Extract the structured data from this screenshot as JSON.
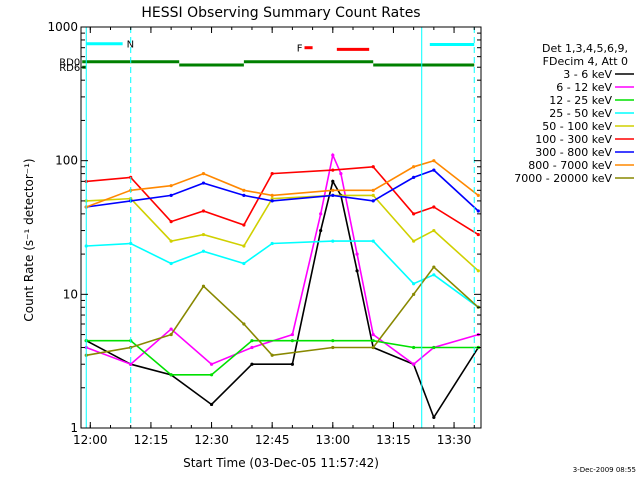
{
  "chart_data": {
    "type": "line",
    "title": "HESSI Observing Summary Count Rates",
    "xlabel": "Start Time (03-Dec-05 11:57:42)",
    "ylabel": "Count Rate (s⁻¹ detector⁻¹)",
    "y_scale": "log",
    "ylim": [
      1,
      1000
    ],
    "xlim": [
      "11:57:42",
      "13:36:40"
    ],
    "x_ticks": [
      "12:00",
      "12:15",
      "12:30",
      "12:45",
      "13:00",
      "13:15",
      "13:30"
    ],
    "y_ticks": [
      "1",
      "10",
      "100",
      "1000"
    ],
    "grid": false,
    "legend_header": [
      "Det 1,3,4,5,6,9,",
      "FDecim 4, Att 0"
    ],
    "legend_position": "right",
    "series": [
      {
        "name": "3 - 6 keV",
        "color": "#000000",
        "x": [
          "11:59",
          "12:10",
          "12:20",
          "12:30",
          "12:40",
          "12:50",
          "12:57",
          "13:00",
          "13:02",
          "13:06",
          "13:10",
          "13:20",
          "13:25",
          "13:36"
        ],
        "values": [
          4.5,
          3.0,
          2.5,
          1.5,
          3.0,
          3.0,
          30,
          70,
          55,
          15,
          4,
          3,
          1.2,
          4
        ]
      },
      {
        "name": "6 - 12 keV",
        "color": "#ff00ff",
        "x": [
          "11:59",
          "12:10",
          "12:20",
          "12:30",
          "12:40",
          "12:50",
          "12:57",
          "13:00",
          "13:02",
          "13:06",
          "13:10",
          "13:20",
          "13:25",
          "13:36"
        ],
        "values": [
          4.0,
          3.0,
          5.5,
          3.0,
          4.0,
          5.0,
          40,
          110,
          80,
          20,
          5,
          3,
          4,
          5
        ]
      },
      {
        "name": "12 - 25 keV",
        "color": "#00e000",
        "x": [
          "11:59",
          "12:10",
          "12:20",
          "12:30",
          "12:40",
          "12:50",
          "13:00",
          "13:10",
          "13:20",
          "13:25",
          "13:36"
        ],
        "values": [
          4.5,
          4.5,
          2.5,
          2.5,
          4.5,
          4.5,
          4.5,
          4.5,
          4.0,
          4.0,
          4.0
        ]
      },
      {
        "name": "25 - 50 keV",
        "color": "#00ffff",
        "x": [
          "11:59",
          "12:10",
          "12:20",
          "12:28",
          "12:38",
          "12:45",
          "13:00",
          "13:10",
          "13:20",
          "13:25",
          "13:36"
        ],
        "values": [
          23,
          24,
          17,
          21,
          17,
          24,
          25,
          25,
          12,
          14,
          8
        ]
      },
      {
        "name": "50 - 100 keV",
        "color": "#d0d000",
        "x": [
          "11:59",
          "12:10",
          "12:20",
          "12:28",
          "12:38",
          "12:45",
          "13:00",
          "13:10",
          "13:20",
          "13:25",
          "13:36"
        ],
        "values": [
          50,
          52,
          25,
          28,
          23,
          52,
          55,
          55,
          25,
          30,
          15
        ]
      },
      {
        "name": "100 - 300 keV",
        "color": "#ff0000",
        "x": [
          "11:59",
          "12:10",
          "12:20",
          "12:28",
          "12:38",
          "12:45",
          "13:00",
          "13:10",
          "13:20",
          "13:25",
          "13:36"
        ],
        "values": [
          70,
          75,
          35,
          42,
          33,
          80,
          85,
          90,
          40,
          45,
          28
        ]
      },
      {
        "name": "300 - 800 keV",
        "color": "#0000ff",
        "x": [
          "11:59",
          "12:10",
          "12:20",
          "12:28",
          "12:38",
          "12:45",
          "13:00",
          "13:10",
          "13:20",
          "13:25",
          "13:36"
        ],
        "values": [
          45,
          50,
          55,
          68,
          55,
          50,
          55,
          50,
          75,
          85,
          42
        ]
      },
      {
        "name": "800 - 7000 keV",
        "color": "#ff8800",
        "x": [
          "11:59",
          "12:10",
          "12:20",
          "12:28",
          "12:38",
          "12:45",
          "13:00",
          "13:10",
          "13:20",
          "13:25",
          "13:36"
        ],
        "values": [
          45,
          60,
          65,
          80,
          60,
          55,
          60,
          60,
          90,
          100,
          55
        ]
      },
      {
        "name": "7000 - 20000 keV",
        "color": "#888800",
        "x": [
          "11:59",
          "12:10",
          "12:20",
          "12:28",
          "12:38",
          "12:45",
          "13:00",
          "13:10",
          "13:20",
          "13:25",
          "13:36"
        ],
        "values": [
          3.5,
          4.0,
          5.0,
          11.5,
          6.0,
          3.5,
          4.0,
          4.0,
          10,
          16,
          8
        ]
      }
    ],
    "annotations": [
      {
        "label": "N",
        "color": "#00ffff",
        "x": [
          "11:59",
          "12:08"
        ],
        "level": 750
      },
      {
        "label": "F",
        "color": "#ff0000",
        "x": [
          "12:53",
          "12:55"
        ],
        "level": 700
      },
      {
        "label": "",
        "color": "#ff0000",
        "x": [
          "13:01",
          "13:09"
        ],
        "level": 680
      },
      {
        "label": "",
        "color": "#00ffff",
        "x": [
          "13:24",
          "13:35"
        ],
        "level": 740
      },
      {
        "label": "RD0",
        "color": "#008000",
        "x": [
          "11:58",
          "12:22"
        ],
        "level": 550
      },
      {
        "label": "",
        "color": "#008000",
        "x": [
          "12:22",
          "12:38"
        ],
        "level": 520
      },
      {
        "label": "",
        "color": "#008000",
        "x": [
          "12:38",
          "13:10"
        ],
        "level": 550
      },
      {
        "label": "",
        "color": "#008000",
        "x": [
          "13:10",
          "13:35"
        ],
        "level": 520
      },
      {
        "label": "RD6",
        "color": "#008000",
        "x": [
          "11:58",
          "11:59"
        ],
        "level": 500
      }
    ],
    "vertical_lines": [
      {
        "x": "11:59",
        "color": "#00ffff",
        "style": "solid"
      },
      {
        "x": "12:10",
        "color": "#00ffff",
        "style": "dashed"
      },
      {
        "x": "13:22",
        "color": "#00ffff",
        "style": "solid"
      },
      {
        "x": "13:35",
        "color": "#00ffff",
        "style": "dashed"
      }
    ],
    "timestamp": "3-Dec-2009 08:55"
  }
}
